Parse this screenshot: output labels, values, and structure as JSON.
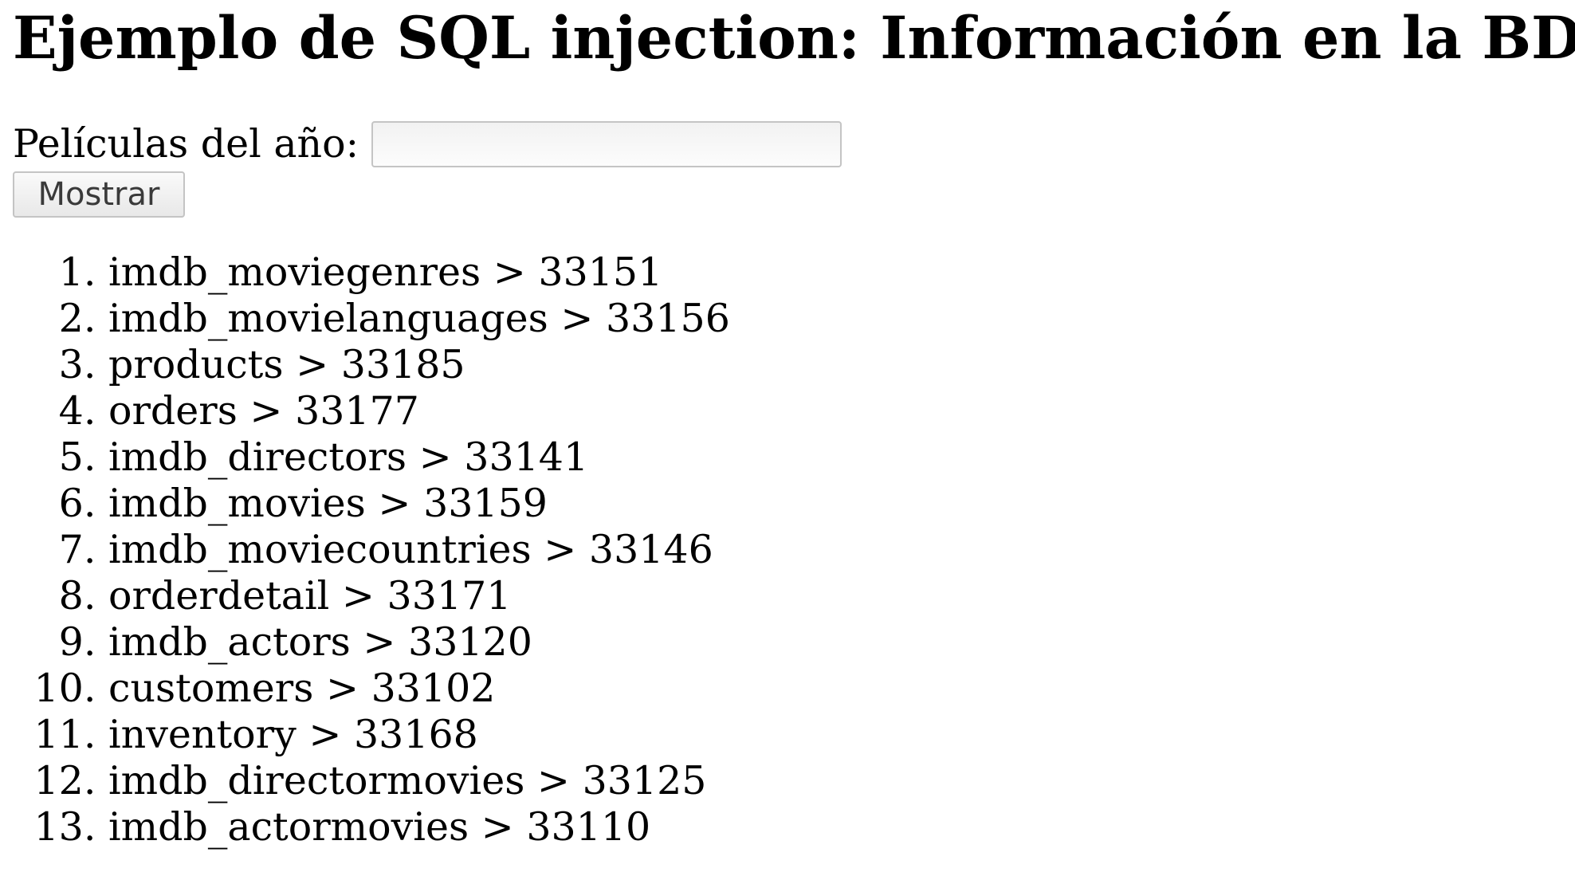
{
  "page": {
    "title": "Ejemplo de SQL injection: Información en la BD"
  },
  "form": {
    "label": "Películas del año:",
    "input_value": "",
    "input_placeholder": "",
    "submit_label": "Mostrar"
  },
  "results": [
    {
      "table": "imdb_moviegenres",
      "id": "33151"
    },
    {
      "table": "imdb_movielanguages",
      "id": "33156"
    },
    {
      "table": "products",
      "id": "33185"
    },
    {
      "table": "orders",
      "id": "33177"
    },
    {
      "table": "imdb_directors",
      "id": "33141"
    },
    {
      "table": "imdb_movies",
      "id": "33159"
    },
    {
      "table": "imdb_moviecountries",
      "id": "33146"
    },
    {
      "table": "orderdetail",
      "id": "33171"
    },
    {
      "table": "imdb_actors",
      "id": "33120"
    },
    {
      "table": "customers",
      "id": "33102"
    },
    {
      "table": "inventory",
      "id": "33168"
    },
    {
      "table": "imdb_directormovies",
      "id": "33125"
    },
    {
      "table": "imdb_actormovies",
      "id": "33110"
    }
  ]
}
